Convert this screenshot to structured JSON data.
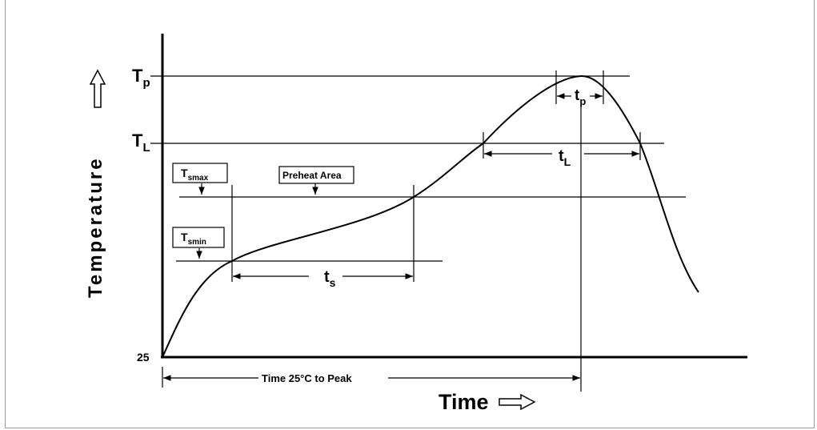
{
  "axes": {
    "y_label": "Temperature",
    "x_label": "Time",
    "origin_label": "25"
  },
  "levels": {
    "tp_main": "T",
    "tp_sub": "p",
    "tl_main": "T",
    "tl_sub": "L"
  },
  "boxes": {
    "tsmax_main": "T",
    "tsmax_sub": "smax",
    "tsmin_main": "T",
    "tsmin_sub": "smin",
    "preheat": "Preheat Area"
  },
  "intervals": {
    "ts_main": "t",
    "ts_sub": "s",
    "tl_main": "t",
    "tl_sub": "L",
    "tp_main": "t",
    "tp_sub": "p",
    "to_peak": "Time 25°C to Peak"
  }
}
